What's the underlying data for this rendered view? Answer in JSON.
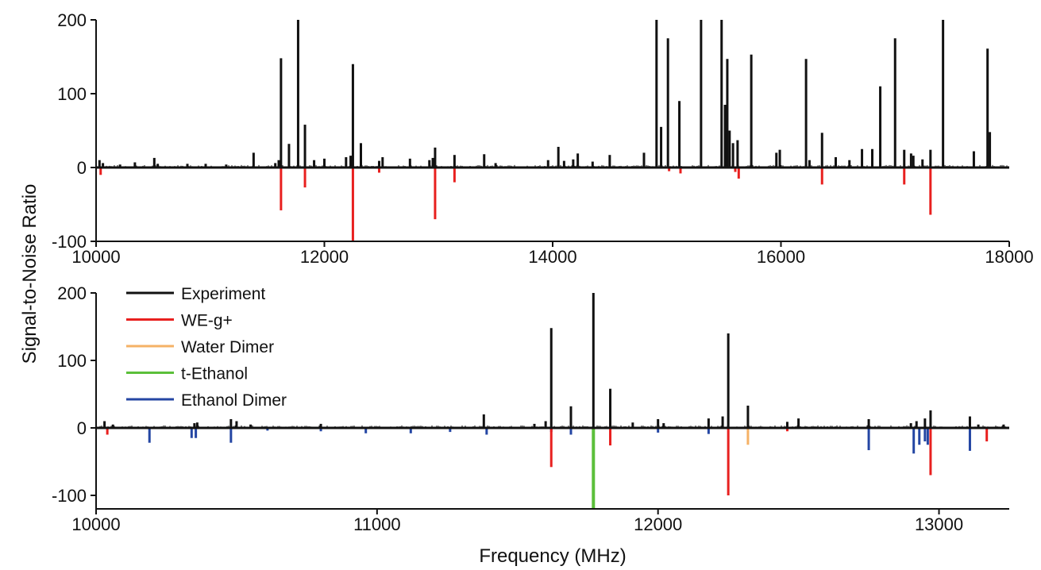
{
  "ylabel": "Signal-to-Noise Ratio",
  "xlabel": "Frequency (MHz)",
  "colors": {
    "Experiment": "#111111",
    "WE-g+": "#e8201f",
    "Water Dimer": "#f5b266",
    "t-Ethanol": "#5bbf3a",
    "Ethanol Dimer": "#2446a3"
  },
  "chart_data": [
    {
      "type": "bar",
      "xlim": [
        10000,
        18000
      ],
      "ylim": [
        -100,
        200
      ],
      "xticks": [
        10000,
        12000,
        14000,
        16000,
        18000
      ],
      "yticks": [
        -100,
        0,
        100,
        200
      ],
      "ytick_labels": [
        "-100",
        "0",
        "100",
        "200"
      ],
      "series": [
        {
          "name": "Experiment",
          "sticks": [
            [
              10030,
              10
            ],
            [
              10060,
              6
            ],
            [
              10210,
              4
            ],
            [
              10340,
              7
            ],
            [
              10510,
              13
            ],
            [
              10540,
              5
            ],
            [
              10800,
              5
            ],
            [
              10960,
              5
            ],
            [
              11140,
              4
            ],
            [
              11380,
              20
            ],
            [
              11570,
              6
            ],
            [
              11600,
              10
            ],
            [
              11620,
              148
            ],
            [
              11690,
              32
            ],
            [
              11770,
              200
            ],
            [
              11830,
              58
            ],
            [
              11910,
              10
            ],
            [
              12000,
              12
            ],
            [
              12190,
              14
            ],
            [
              12230,
              16
            ],
            [
              12250,
              140
            ],
            [
              12320,
              33
            ],
            [
              12480,
              9
            ],
            [
              12510,
              14
            ],
            [
              12750,
              12
            ],
            [
              12920,
              10
            ],
            [
              12950,
              13
            ],
            [
              12970,
              27
            ],
            [
              13140,
              17
            ],
            [
              13400,
              18
            ],
            [
              13500,
              6
            ],
            [
              13960,
              10
            ],
            [
              14050,
              28
            ],
            [
              14100,
              9
            ],
            [
              14180,
              11
            ],
            [
              14220,
              19
            ],
            [
              14350,
              8
            ],
            [
              14500,
              17
            ],
            [
              14800,
              20
            ],
            [
              14910,
              200
            ],
            [
              14950,
              55
            ],
            [
              15010,
              175
            ],
            [
              15110,
              90
            ],
            [
              15300,
              200
            ],
            [
              15480,
              200
            ],
            [
              15510,
              85
            ],
            [
              15530,
              147
            ],
            [
              15550,
              50
            ],
            [
              15580,
              33
            ],
            [
              15620,
              37
            ],
            [
              15740,
              153
            ],
            [
              15960,
              20
            ],
            [
              15990,
              24
            ],
            [
              16220,
              147
            ],
            [
              16250,
              10
            ],
            [
              16360,
              47
            ],
            [
              16480,
              14
            ],
            [
              16600,
              10
            ],
            [
              16710,
              25
            ],
            [
              16800,
              25
            ],
            [
              16870,
              110
            ],
            [
              17000,
              175
            ],
            [
              17080,
              24
            ],
            [
              17140,
              19
            ],
            [
              17160,
              16
            ],
            [
              17240,
              11
            ],
            [
              17310,
              24
            ],
            [
              17420,
              200
            ],
            [
              17690,
              22
            ],
            [
              17810,
              161
            ],
            [
              17830,
              48
            ]
          ]
        },
        {
          "name": "WE-g+",
          "sticks": [
            [
              10040,
              -10
            ],
            [
              11620,
              -58
            ],
            [
              11830,
              -27
            ],
            [
              12250,
              -102
            ],
            [
              12480,
              -7
            ],
            [
              12970,
              -70
            ],
            [
              13140,
              -20
            ],
            [
              15020,
              -5
            ],
            [
              15120,
              -8
            ],
            [
              15600,
              -6
            ],
            [
              15630,
              -15
            ],
            [
              16360,
              -23
            ],
            [
              17080,
              -23
            ],
            [
              17310,
              -64
            ]
          ]
        }
      ]
    },
    {
      "type": "bar",
      "xlim": [
        10000,
        13250
      ],
      "ylim": [
        -120,
        200
      ],
      "xticks": [
        10000,
        11000,
        12000,
        13000
      ],
      "yticks": [
        -100,
        0,
        100,
        200
      ],
      "ytick_labels": [
        "-100",
        "0",
        "100",
        "200"
      ],
      "legend": {
        "placement": "top-left",
        "entries": [
          "Experiment",
          "WE-g+",
          "Water Dimer",
          "t-Ethanol",
          "Ethanol Dimer"
        ]
      },
      "series": [
        {
          "name": "Experiment",
          "sticks": [
            [
              10030,
              10
            ],
            [
              10060,
              5
            ],
            [
              10350,
              7
            ],
            [
              10360,
              8
            ],
            [
              10480,
              13
            ],
            [
              10500,
              10
            ],
            [
              10550,
              5
            ],
            [
              10800,
              6
            ],
            [
              11380,
              20
            ],
            [
              11560,
              6
            ],
            [
              11600,
              10
            ],
            [
              11620,
              148
            ],
            [
              11690,
              32
            ],
            [
              11770,
              202
            ],
            [
              11830,
              58
            ],
            [
              11910,
              8
            ],
            [
              12000,
              13
            ],
            [
              12020,
              7
            ],
            [
              12180,
              14
            ],
            [
              12230,
              17
            ],
            [
              12250,
              140
            ],
            [
              12320,
              33
            ],
            [
              12460,
              9
            ],
            [
              12500,
              14
            ],
            [
              12750,
              13
            ],
            [
              12900,
              7
            ],
            [
              12920,
              10
            ],
            [
              12950,
              14
            ],
            [
              12970,
              26
            ],
            [
              13110,
              17
            ],
            [
              13140,
              5
            ],
            [
              13230,
              5
            ]
          ]
        },
        {
          "name": "WE-g+",
          "sticks": [
            [
              10040,
              -10
            ],
            [
              11620,
              -58
            ],
            [
              11830,
              -26
            ],
            [
              12250,
              -100
            ],
            [
              12460,
              -5
            ],
            [
              12970,
              -70
            ],
            [
              13170,
              -20
            ]
          ]
        },
        {
          "name": "Water Dimer",
          "sticks": [
            [
              12320,
              -25
            ]
          ]
        },
        {
          "name": "t-Ethanol",
          "sticks": [
            [
              11770,
              -120
            ]
          ]
        },
        {
          "name": "Ethanol Dimer",
          "sticks": [
            [
              10190,
              -22
            ],
            [
              10340,
              -15
            ],
            [
              10355,
              -15
            ],
            [
              10480,
              -22
            ],
            [
              10610,
              -4
            ],
            [
              10800,
              -5
            ],
            [
              10960,
              -8
            ],
            [
              11120,
              -8
            ],
            [
              11260,
              -6
            ],
            [
              11390,
              -10
            ],
            [
              11620,
              -6
            ],
            [
              11690,
              -10
            ],
            [
              12000,
              -7
            ],
            [
              12180,
              -9
            ],
            [
              12750,
              -33
            ],
            [
              12910,
              -38
            ],
            [
              12930,
              -25
            ],
            [
              12950,
              -20
            ],
            [
              12960,
              -25
            ],
            [
              13110,
              -34
            ]
          ]
        }
      ]
    }
  ]
}
